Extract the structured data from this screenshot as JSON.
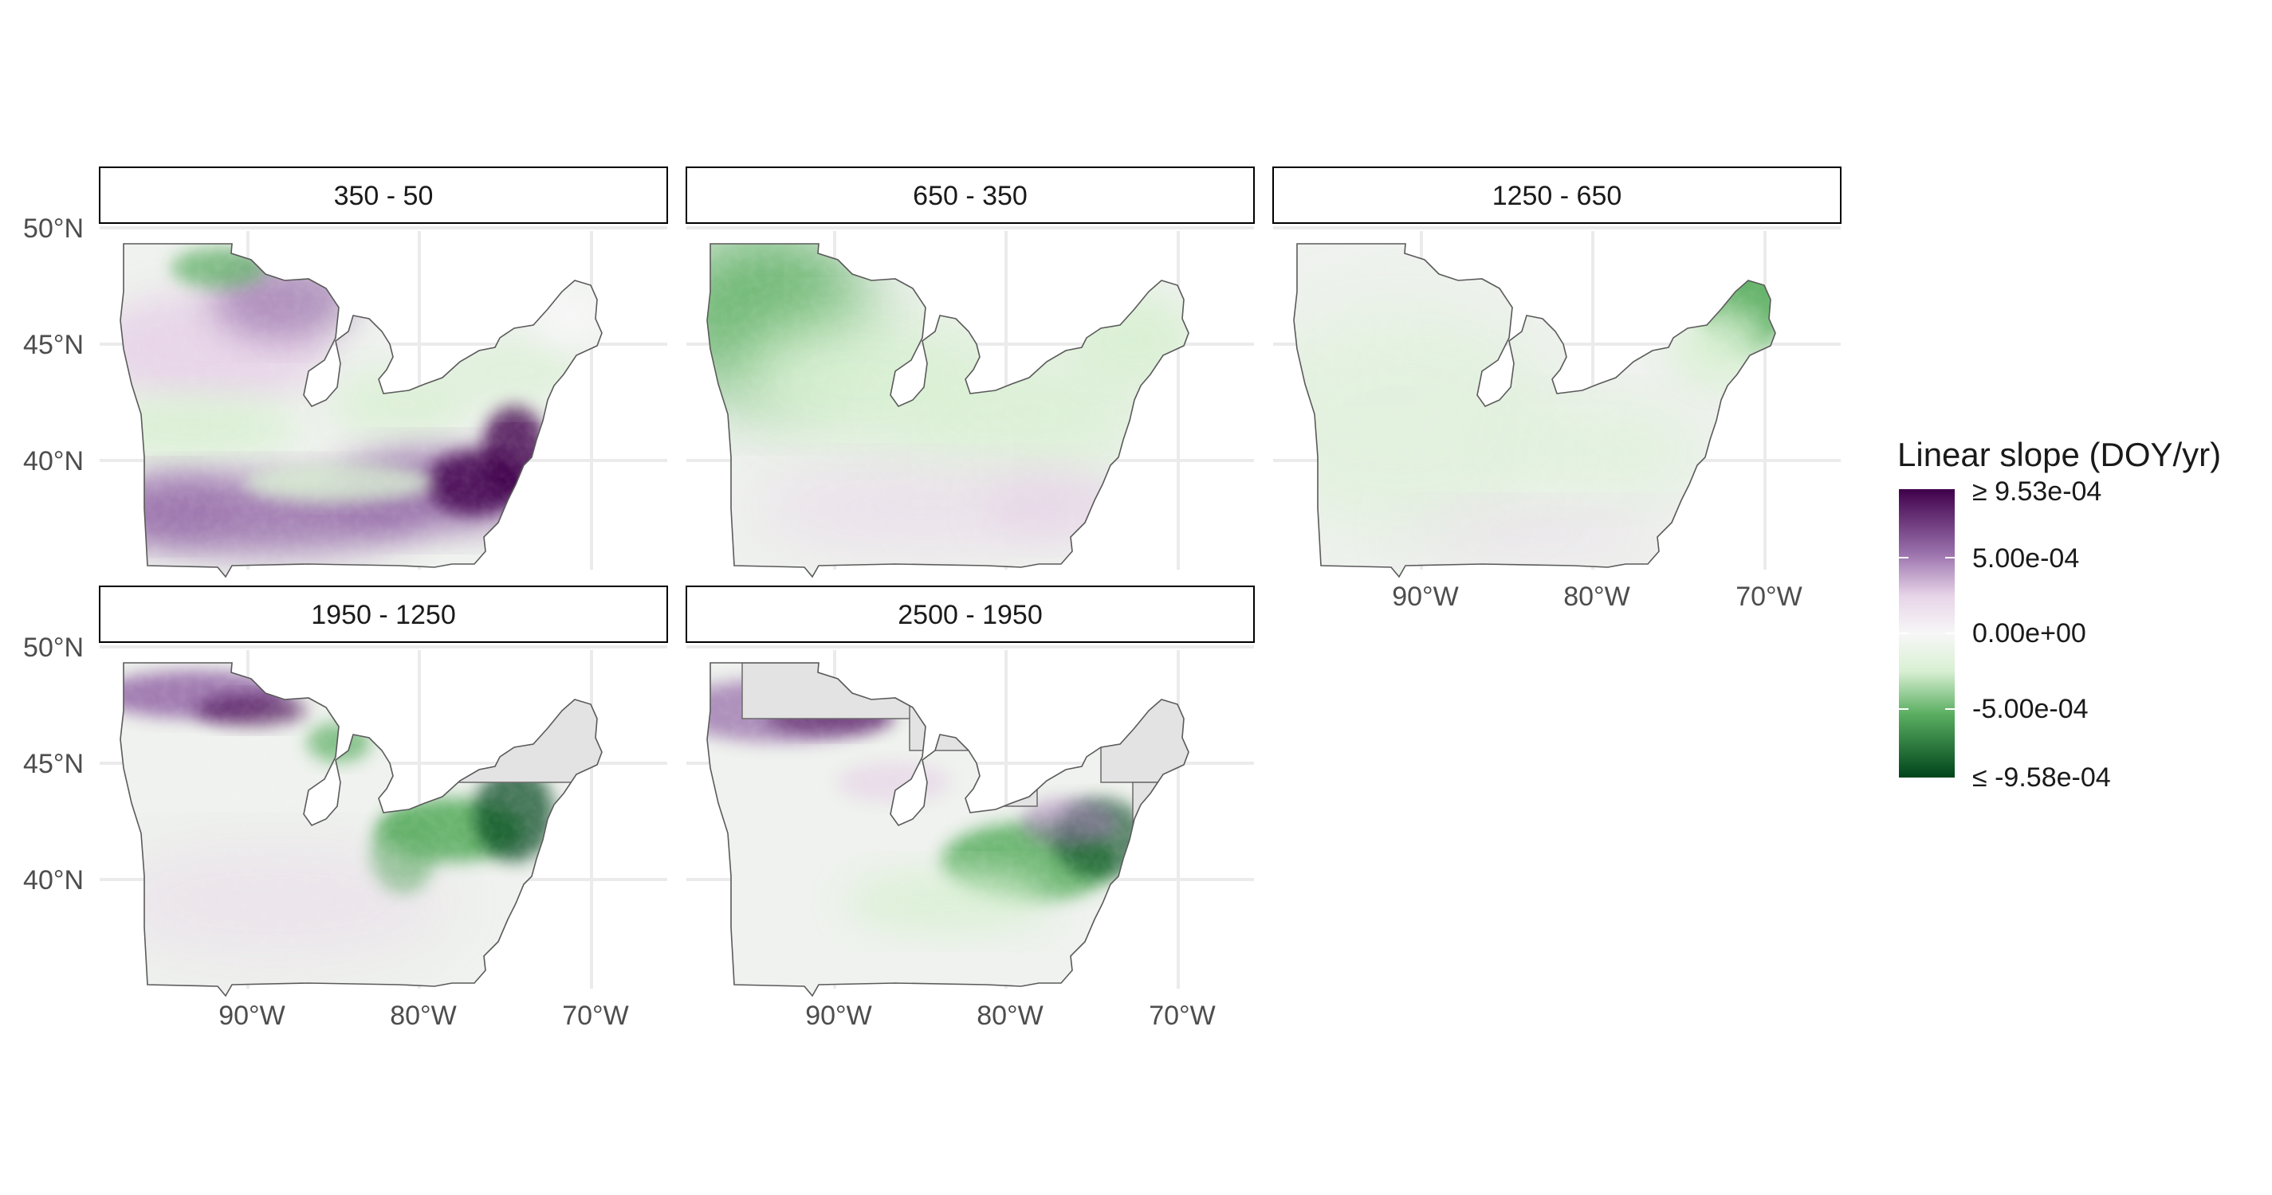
{
  "panels": [
    {
      "label": "350 - 50",
      "pattern": "p1"
    },
    {
      "label": "650 - 350",
      "pattern": "p2"
    },
    {
      "label": "1250 - 650",
      "pattern": "p3"
    },
    {
      "label": "1950 - 1250",
      "pattern": "p4"
    },
    {
      "label": "2500 - 1950",
      "pattern": "p5"
    }
  ],
  "axes": {
    "y_ticks": [
      "50°N",
      "45°N",
      "40°N"
    ],
    "x_ticks": [
      "90°W",
      "80°W",
      "70°W"
    ]
  },
  "legend": {
    "title": "Linear slope (DOY/yr)",
    "labels": [
      "≥ 9.53e-04",
      "5.00e-04",
      "0.00e+00",
      "-5.00e-04",
      "≤ -9.58e-04"
    ],
    "colors": {
      "max": "#40004b",
      "high": "#9970ab",
      "mid_high": "#e7d4e8",
      "zero": "#f7f7f7",
      "mid_low": "#d9f0d3",
      "low": "#5aae61",
      "min": "#00441b"
    }
  },
  "colors": {
    "no_data": "#e3e3e3",
    "base_fill": "#eff2ee"
  }
}
